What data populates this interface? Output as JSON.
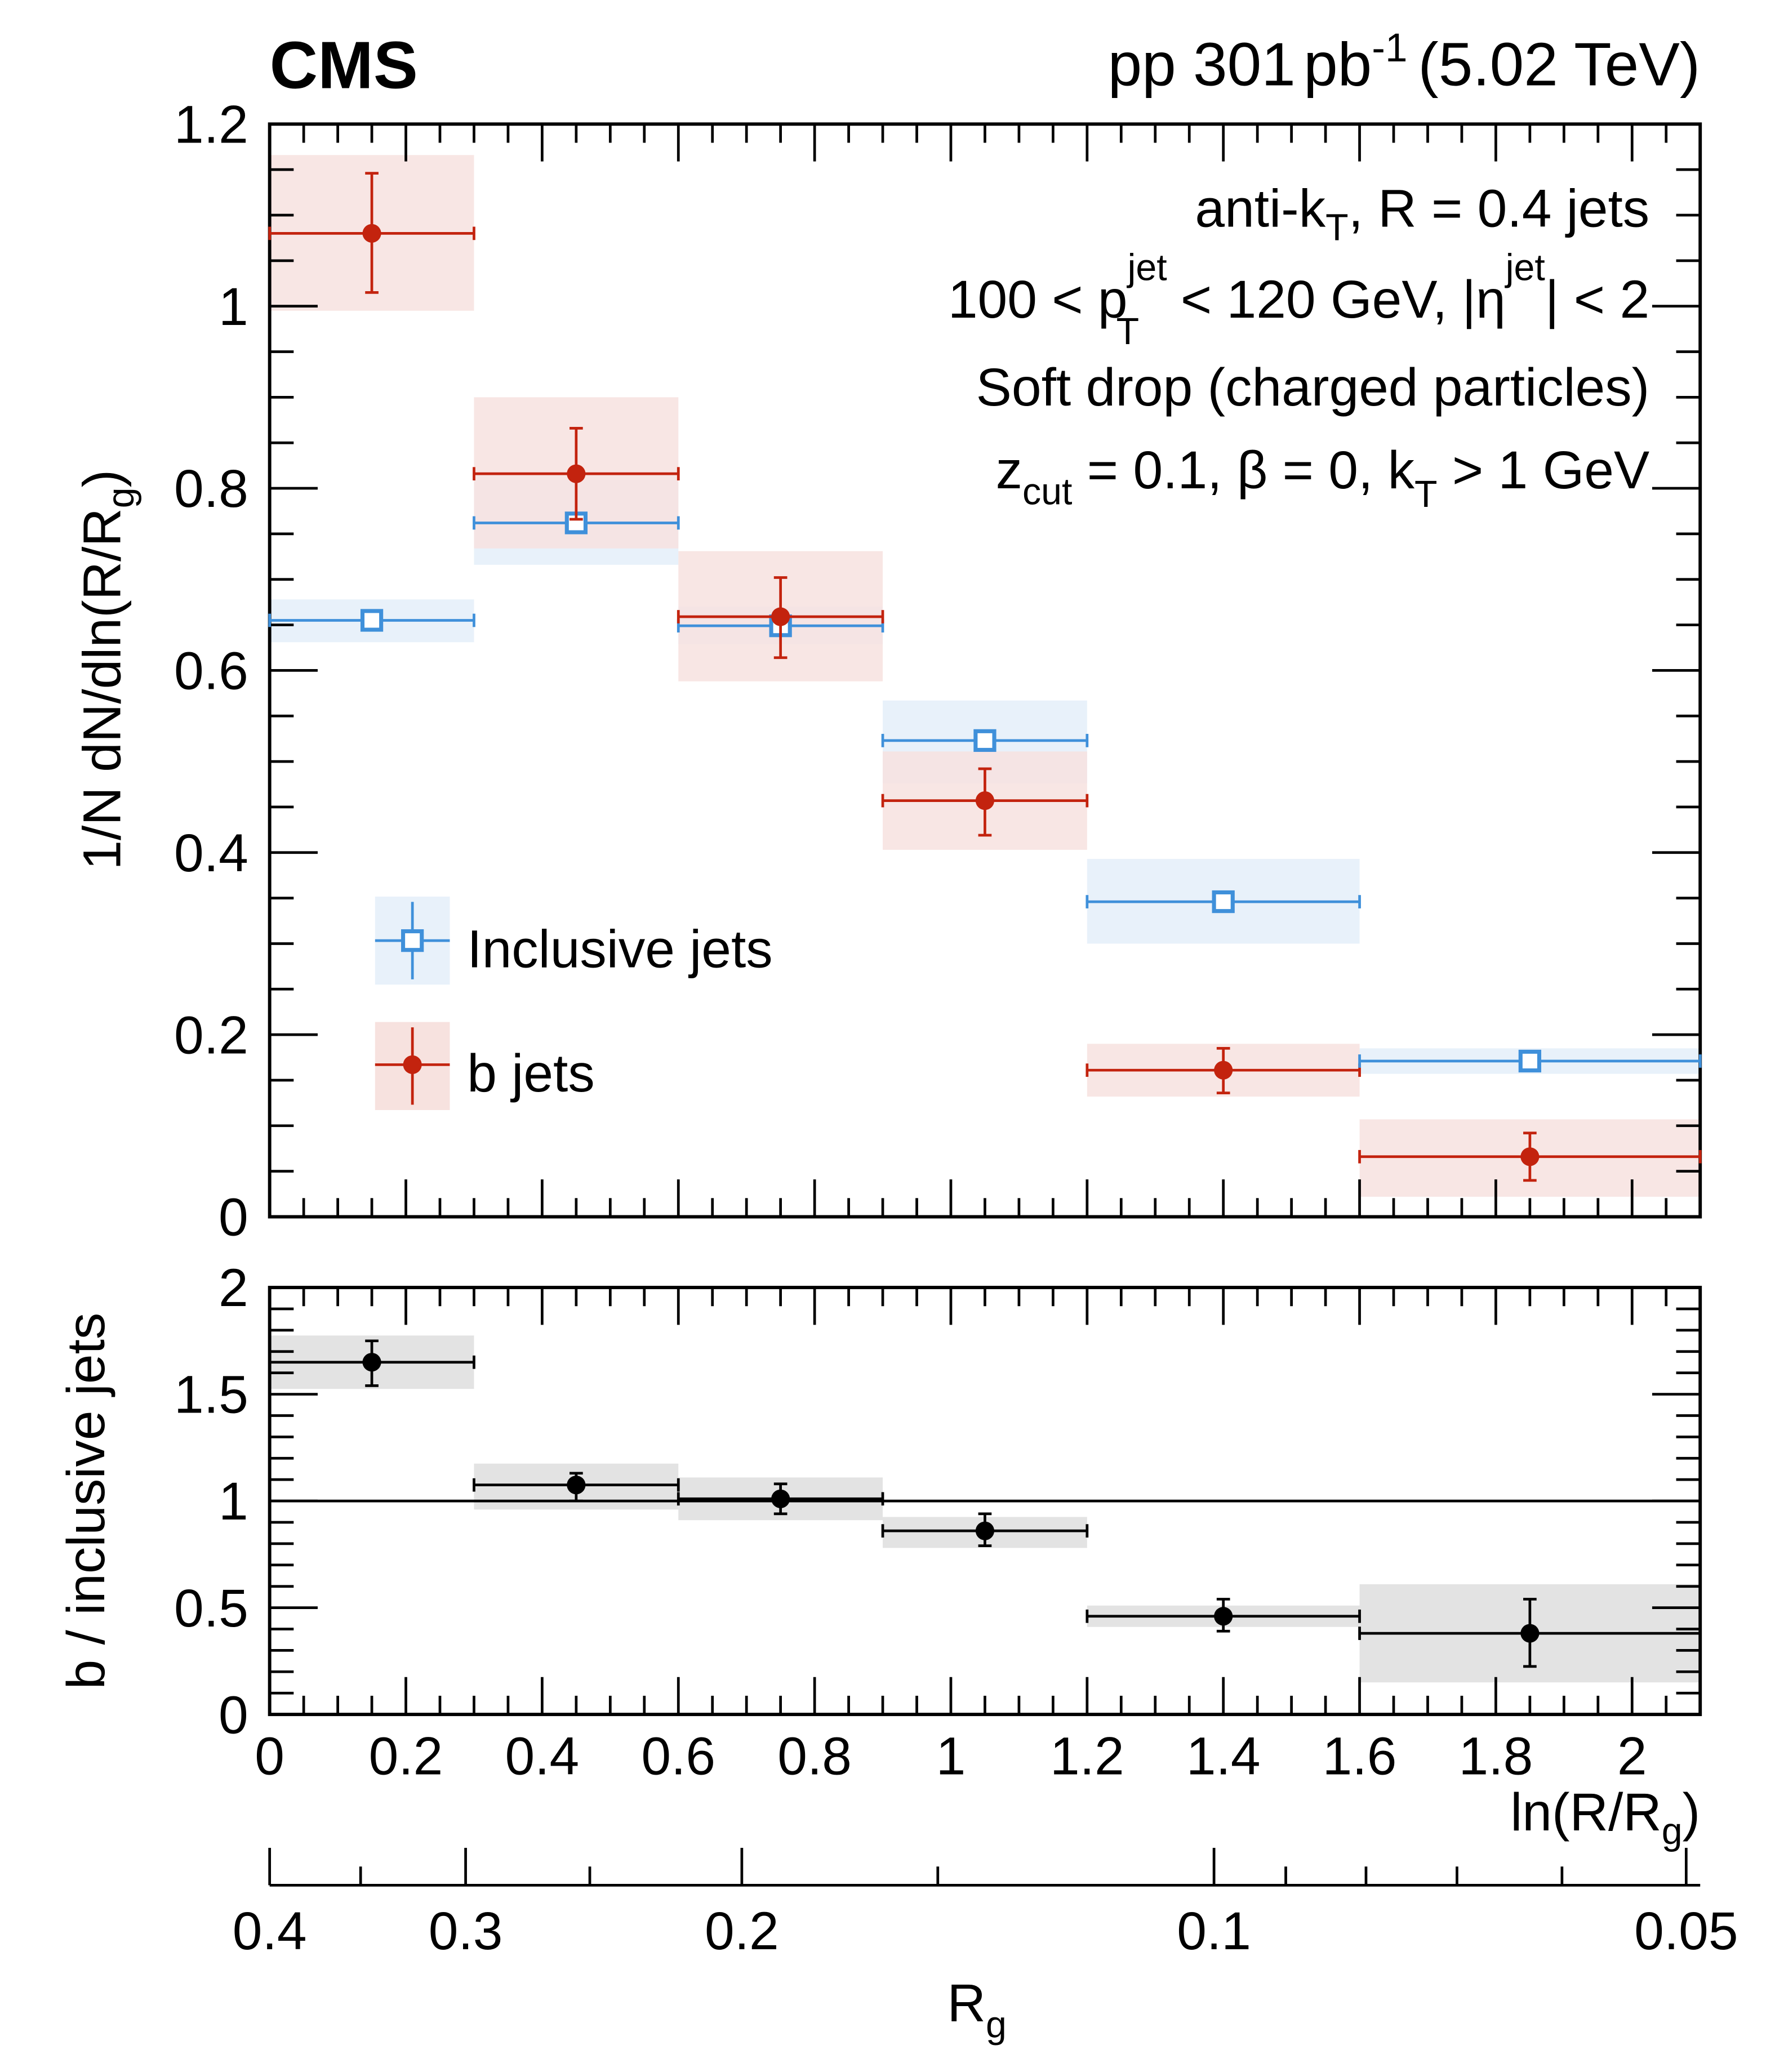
{
  "header": {
    "experiment": "CMS",
    "lumi_prefix": "pp 301",
    "lumi_unit": "pb",
    "lumi_exp": "-1",
    "energy": "(5.02 TeV)"
  },
  "annotations": {
    "line1": {
      "a": "anti-k",
      "sub": "T",
      "b": ", R = 0.4 jets"
    },
    "line2": {
      "a": "100 < p",
      "sup": "jet",
      "sub": "T",
      "b": " < 120 GeV, |η",
      "sup2": "jet",
      "c": "| < 2"
    },
    "line3": "Soft drop (charged particles)",
    "line4": {
      "a": "z",
      "sub": "cut",
      "b": " = 0.1, β = 0, k",
      "sub2": "T",
      "c": " > 1 GeV"
    }
  },
  "colors": {
    "inclusive": "#3f90da",
    "inclusive_band": "#e8f1fa",
    "bjets": "#c3230e",
    "bjets_band": "#f7e2df",
    "ratio": "#000000",
    "ratio_band": "#e3e3e3"
  },
  "chart_data": [
    {
      "type": "scatter",
      "ylabel": {
        "a": "1/N dN/dln(R/R",
        "sub": "g",
        "b": ")"
      },
      "xlim": [
        0,
        2.1
      ],
      "ylim": [
        0,
        1.2
      ],
      "yticks": [
        "0",
        "0.2",
        "0.4",
        "0.6",
        "0.8",
        "1",
        "1.2"
      ],
      "legend": {
        "placement": "center-left",
        "entries": [
          "Inclusive jets",
          "b jets"
        ]
      },
      "bins": [
        [
          0,
          0.3
        ],
        [
          0.3,
          0.6
        ],
        [
          0.6,
          0.9
        ],
        [
          0.9,
          1.2
        ],
        [
          1.2,
          1.6
        ],
        [
          1.6,
          2.1
        ]
      ],
      "x": [
        0.15,
        0.45,
        0.75,
        1.05,
        1.4,
        1.85
      ],
      "series": [
        {
          "name": "Inclusive jets",
          "marker": "open-square",
          "values": [
            0.655,
            0.762,
            0.649,
            0.523,
            0.346,
            0.171
          ],
          "stat_err": [
            0.004,
            0.005,
            0.005,
            0.005,
            0.005,
            0.004
          ],
          "syst_low": [
            0.631,
            0.716,
            0.629,
            0.476,
            0.3,
            0.157
          ],
          "syst_high": [
            0.678,
            0.809,
            0.67,
            0.567,
            0.393,
            0.185
          ]
        },
        {
          "name": "b jets",
          "marker": "filled-circle",
          "values": [
            1.08,
            0.816,
            0.659,
            0.457,
            0.161,
            0.066
          ],
          "stat_low": [
            1.015,
            0.766,
            0.614,
            0.419,
            0.136,
            0.04
          ],
          "stat_high": [
            1.146,
            0.866,
            0.702,
            0.492,
            0.185,
            0.092
          ],
          "syst_low": [
            0.995,
            0.734,
            0.588,
            0.403,
            0.132,
            0.022
          ],
          "syst_high": [
            1.166,
            0.9,
            0.731,
            0.511,
            0.19,
            0.107
          ]
        }
      ]
    },
    {
      "type": "scatter",
      "ylabel": "b / inclusive jets",
      "xlabel": {
        "a": "ln(R/R",
        "sub": "g",
        "b": ")"
      },
      "xlim": [
        0,
        2.1
      ],
      "ylim": [
        0,
        2
      ],
      "xticks": [
        "0",
        "0.2",
        "0.4",
        "0.6",
        "0.8",
        "1",
        "1.2",
        "1.4",
        "1.6",
        "1.8",
        "2"
      ],
      "yticks": [
        "0",
        "0.5",
        "1",
        "1.5",
        "2"
      ],
      "reference_line": 1,
      "x": [
        0.15,
        0.45,
        0.75,
        1.05,
        1.4,
        1.85
      ],
      "values": [
        1.65,
        1.075,
        1.01,
        0.86,
        0.46,
        0.38
      ],
      "stat_low": [
        1.54,
        1.0,
        0.94,
        0.79,
        0.39,
        0.225
      ],
      "stat_high": [
        1.75,
        1.13,
        1.08,
        0.94,
        0.54,
        0.54
      ],
      "syst_low": [
        1.525,
        0.96,
        0.91,
        0.78,
        0.41,
        0.15
      ],
      "syst_high": [
        1.775,
        1.175,
        1.11,
        0.925,
        0.51,
        0.61
      ]
    }
  ],
  "secondary_axis": {
    "label": {
      "a": "R",
      "sub": "g"
    },
    "relation": "R_g = 0.4 / exp(ln(R/R_g))",
    "ticks": [
      "0.4",
      "0.3",
      "0.2",
      "0.1",
      "0.05"
    ]
  }
}
